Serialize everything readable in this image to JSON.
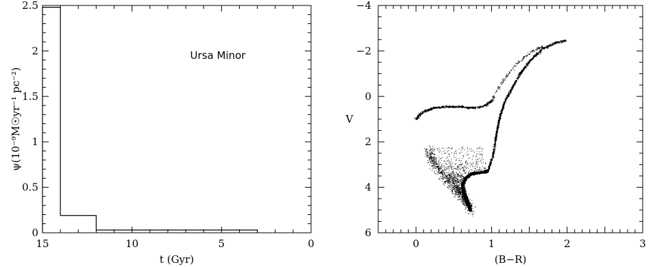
{
  "chart_data": [
    {
      "type": "line",
      "subtype": "step-histogram",
      "annotation": "Ursa Minor",
      "xlabel": "t (Gyr)",
      "ylabel": "ψ(10⁻⁹M☉yr⁻¹ pc⁻²)",
      "xlim": [
        15,
        0
      ],
      "ylim": [
        0,
        2.5
      ],
      "x_inverted": true,
      "xticks": [
        "15",
        "10",
        "5",
        "0"
      ],
      "yticks": [
        "0",
        "0.5",
        "1",
        "1.5",
        "2",
        "2.5"
      ],
      "bins": [
        {
          "t_start": 15,
          "t_end": 14,
          "psi": 2.48
        },
        {
          "t_start": 14,
          "t_end": 12,
          "psi": 0.19
        },
        {
          "t_start": 12,
          "t_end": 8,
          "psi": 0.03
        },
        {
          "t_start": 8,
          "t_end": 3,
          "psi": 0.03
        }
      ],
      "grid": false
    },
    {
      "type": "scatter",
      "xlabel": "(B−R)",
      "ylabel": "V",
      "xlim": [
        -0.5,
        3
      ],
      "ylim": [
        6,
        -4
      ],
      "y_inverted": true,
      "xticks": [
        "0",
        "1",
        "2",
        "3"
      ],
      "yticks": [
        "−4",
        "−2",
        "0",
        "2",
        "4",
        "6"
      ],
      "grid": false,
      "features": {
        "main_sequence_turnoff": [
          [
            0.72,
            5.0
          ],
          [
            0.68,
            4.6
          ],
          [
            0.63,
            4.2
          ],
          [
            0.62,
            3.9
          ],
          [
            0.66,
            3.6
          ],
          [
            0.74,
            3.4
          ],
          [
            0.86,
            3.35
          ],
          [
            0.95,
            3.3
          ]
        ],
        "subgiant_blue_edge": [
          [
            0.18,
            2.4
          ],
          [
            0.2,
            2.8
          ],
          [
            0.3,
            3.2
          ],
          [
            0.42,
            3.7
          ],
          [
            0.55,
            4.2
          ],
          [
            0.68,
            4.7
          ],
          [
            0.74,
            5.05
          ]
        ],
        "red_giant_branch": [
          [
            0.95,
            3.3
          ],
          [
            1.02,
            2.6
          ],
          [
            1.05,
            2.0
          ],
          [
            1.08,
            1.4
          ],
          [
            1.12,
            0.8
          ],
          [
            1.18,
            0.2
          ],
          [
            1.28,
            -0.4
          ],
          [
            1.38,
            -1.0
          ],
          [
            1.52,
            -1.6
          ],
          [
            1.68,
            -2.1
          ],
          [
            1.85,
            -2.35
          ],
          [
            1.98,
            -2.45
          ]
        ],
        "horizontal_branch": [
          [
            0.0,
            1.0
          ],
          [
            0.05,
            0.8
          ],
          [
            0.12,
            0.65
          ],
          [
            0.25,
            0.5
          ],
          [
            0.4,
            0.45
          ],
          [
            0.55,
            0.45
          ],
          [
            0.7,
            0.5
          ],
          [
            0.82,
            0.5
          ],
          [
            0.92,
            0.4
          ],
          [
            1.0,
            0.2
          ]
        ],
        "asymptotic_giant_branch": [
          [
            1.0,
            0.2
          ],
          [
            1.08,
            -0.3
          ],
          [
            1.18,
            -0.8
          ],
          [
            1.3,
            -1.3
          ],
          [
            1.42,
            -1.7
          ],
          [
            1.55,
            -2.0
          ],
          [
            1.68,
            -2.2
          ]
        ]
      }
    }
  ]
}
